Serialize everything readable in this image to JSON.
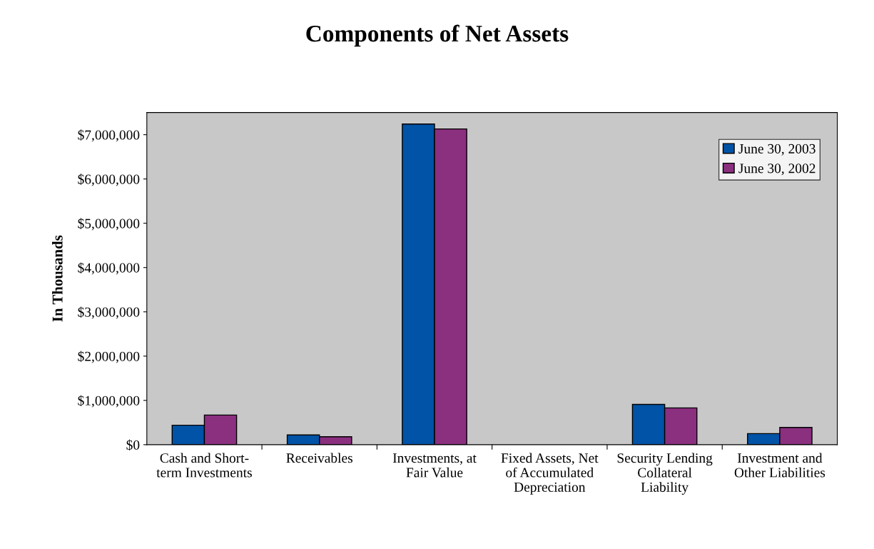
{
  "chart_data": {
    "type": "bar",
    "title": "Components of Net Assets",
    "ylabel": "In Thousands",
    "categories": [
      "Cash and Short-\nterm Investments",
      "Receivables",
      "Investments, at\nFair Value",
      "Fixed Assets, Net\nof Accumulated\nDepreciation",
      "Security Lending\nCollateral\nLiability",
      "Investment and\nOther Liabilities"
    ],
    "series": [
      {
        "name": "June 30, 2003",
        "color": "#0053a6",
        "values": [
          440000,
          220000,
          7240000,
          null,
          910000,
          250000
        ]
      },
      {
        "name": "June 30, 2002",
        "color": "#8b2f7f",
        "values": [
          670000,
          180000,
          7130000,
          null,
          830000,
          390000
        ]
      }
    ],
    "ylim": [
      0,
      7500000
    ],
    "yticks": [
      {
        "value": 0,
        "label": "$0"
      },
      {
        "value": 1000000,
        "label": "$1,000,000"
      },
      {
        "value": 2000000,
        "label": "$2,000,000"
      },
      {
        "value": 3000000,
        "label": "$3,000,000"
      },
      {
        "value": 4000000,
        "label": "$4,000,000"
      },
      {
        "value": 5000000,
        "label": "$5,000,000"
      },
      {
        "value": 6000000,
        "label": "$6,000,000"
      },
      {
        "value": 7000000,
        "label": "$7,000,000"
      }
    ],
    "grid": false,
    "legend": "top right"
  }
}
